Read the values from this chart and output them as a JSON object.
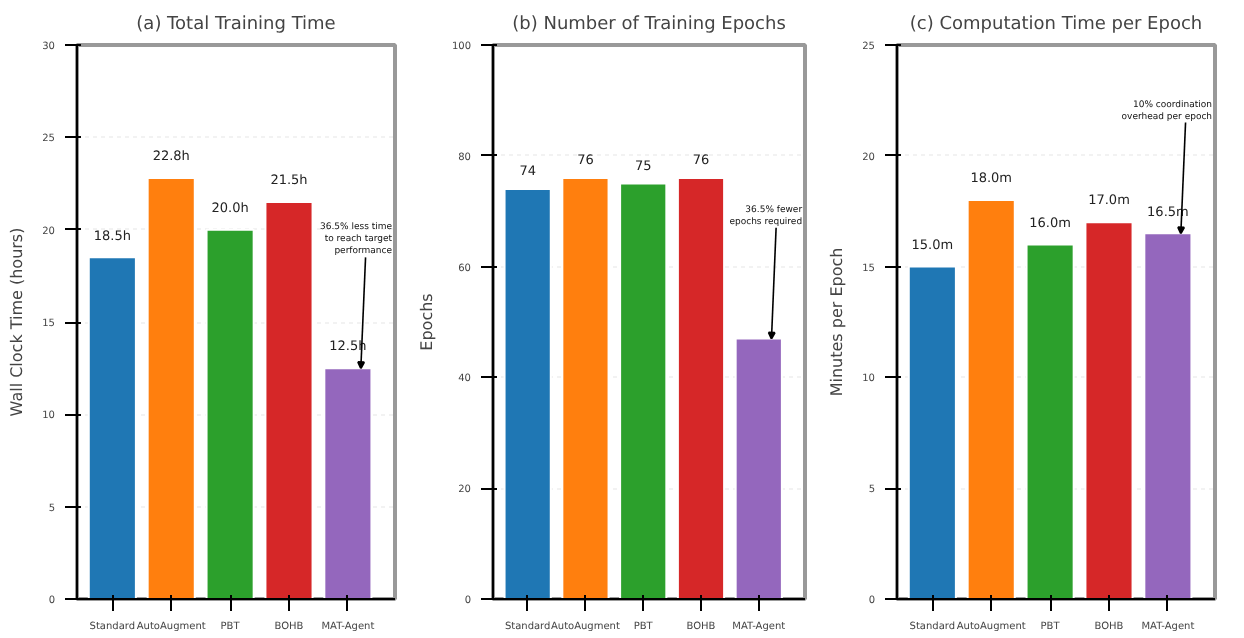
{
  "chart_data": [
    {
      "type": "bar",
      "title": "(a) Total Training Time",
      "ylabel": "Wall Clock Time (hours)",
      "categories": [
        "Standard",
        "AutoAugment",
        "PBT",
        "BOHB",
        "MAT-Agent"
      ],
      "values": [
        18.5,
        22.8,
        20.0,
        21.5,
        12.5
      ],
      "colors": [
        "#1f77b4",
        "#ff7f0e",
        "#2ca02c",
        "#d62728",
        "#9467bd"
      ],
      "value_labels": [
        "18.5h",
        "22.8h",
        "20.0h",
        "21.5h",
        "12.5h"
      ],
      "ylim": [
        0,
        30
      ],
      "yticks": [
        0,
        5,
        10,
        15,
        20,
        25,
        30
      ],
      "grid": "y",
      "annotations": [
        {
          "text": "36.5% less time\nto reach target\nperformance",
          "x": "MAT-Agent",
          "y": 12.5
        }
      ]
    },
    {
      "type": "bar",
      "title": "(b) Number of Training Epochs",
      "ylabel": "Epochs",
      "categories": [
        "Standard",
        "AutoAugment",
        "PBT",
        "BOHB",
        "MAT-Agent"
      ],
      "values": [
        74,
        76,
        75,
        76,
        47
      ],
      "colors": [
        "#1f77b4",
        "#ff7f0e",
        "#2ca02c",
        "#d62728",
        "#9467bd"
      ],
      "value_labels": [
        "74",
        "76",
        "75",
        "76",
        null
      ],
      "ylim": [
        0,
        100
      ],
      "yticks": [
        0,
        20,
        40,
        60,
        80,
        100
      ],
      "grid": "y",
      "annotations": [
        {
          "text": "36.5% fewer\nepochs required",
          "x": "MAT-Agent",
          "y": 47
        }
      ]
    },
    {
      "type": "bar",
      "title": "(c) Computation Time per Epoch",
      "ylabel": "Minutes per Epoch",
      "categories": [
        "Standard",
        "AutoAugment",
        "PBT",
        "BOHB",
        "MAT-Agent"
      ],
      "values": [
        15.0,
        18.0,
        16.0,
        17.0,
        16.5
      ],
      "colors": [
        "#1f77b4",
        "#ff7f0e",
        "#2ca02c",
        "#d62728",
        "#9467bd"
      ],
      "value_labels": [
        "15.0m",
        "18.0m",
        "16.0m",
        "17.0m",
        "16.5m"
      ],
      "ylim": [
        0,
        25
      ],
      "yticks": [
        0,
        5,
        10,
        15,
        20,
        25
      ],
      "grid": "y",
      "annotations": [
        {
          "text": "10% coordination\noverhead per epoch",
          "x": "MAT-Agent",
          "y": 16.5
        }
      ]
    }
  ]
}
